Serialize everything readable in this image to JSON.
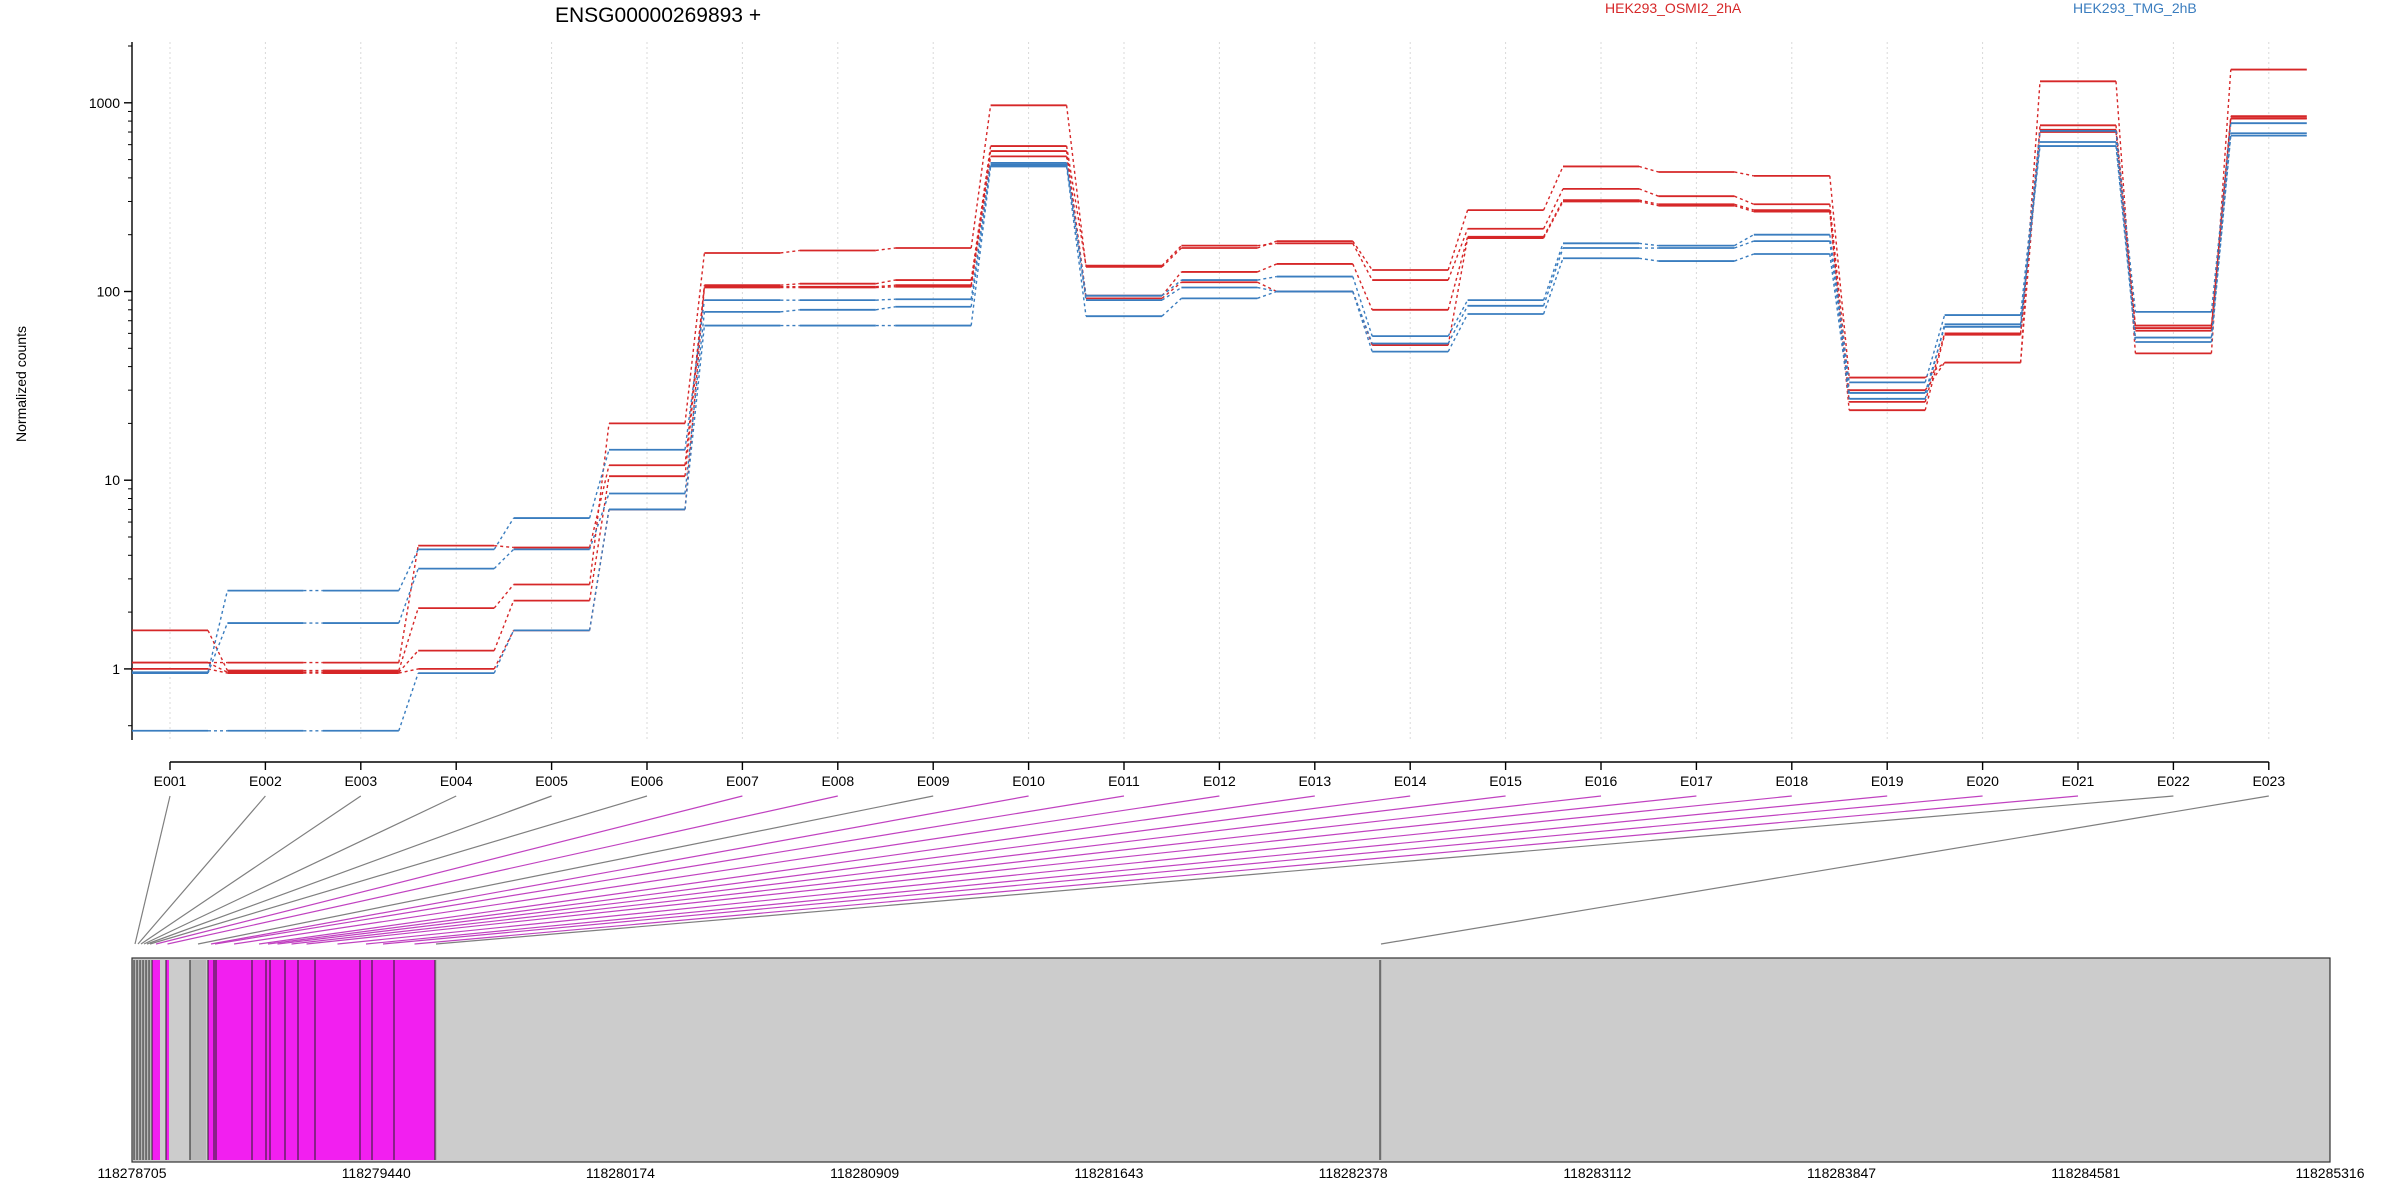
{
  "chart_data": {
    "type": "line",
    "title": "ENSG00000269893 +",
    "ylabel": "Normalized counts",
    "yscale": "log",
    "ylim": [
      0.42,
      2100
    ],
    "yticks": [
      "1",
      "10",
      "100",
      "1000"
    ],
    "grid": true,
    "legend_placement": "top-right",
    "colors": {
      "group1": "#d62728",
      "group2": "#3a7dbf",
      "gray": "#7f7f7f",
      "magenta": "#c042c0",
      "exon_fill": "#f21ff0",
      "track_bg": "#cccccc"
    },
    "categories": [
      "E001",
      "E002",
      "E003",
      "E004",
      "E005",
      "E006",
      "E007",
      "E008",
      "E009",
      "E010",
      "E011",
      "E012",
      "E013",
      "E014",
      "E015",
      "E016",
      "E017",
      "E018",
      "E019",
      "E020",
      "E021",
      "E022",
      "E023"
    ],
    "legend": [
      "HEK293_OSMI2_2hA",
      "HEK293_TMG_2hB"
    ],
    "series": [
      {
        "group": "HEK293_OSMI2_2hA",
        "values": [
          1.6,
          0.98,
          0.98,
          2.1,
          2.8,
          20,
          160,
          165,
          170,
          970,
          135,
          170,
          185,
          130,
          270,
          460,
          430,
          410,
          35,
          42,
          1300,
          47,
          1500
        ]
      },
      {
        "group": "HEK293_OSMI2_2hA",
        "values": [
          1.08,
          1.08,
          1.08,
          4.5,
          4.4,
          12,
          108,
          110,
          115,
          590,
          137,
          175,
          180,
          115,
          215,
          350,
          320,
          290,
          30,
          42,
          760,
          66,
          850
        ]
      },
      {
        "group": "HEK293_OSMI2_2hA",
        "values": [
          1.08,
          0.96,
          0.96,
          1.25,
          2.3,
          10.5,
          106,
          106,
          108,
          555,
          95,
          127,
          140,
          80,
          195,
          305,
          290,
          270,
          26,
          60,
          720,
          62,
          830
        ]
      },
      {
        "group": "HEK293_OSMI2_2hA",
        "values": [
          1.0,
          0.95,
          0.95,
          1.0,
          1.6,
          7.0,
          105,
          105,
          106,
          520,
          92,
          112,
          100,
          52,
          192,
          300,
          285,
          265,
          23.5,
          59,
          700,
          64,
          825
        ]
      },
      {
        "group": "HEK293_TMG_2hB",
        "values": [
          0.96,
          2.6,
          2.6,
          4.3,
          6.3,
          14.5,
          90,
          90,
          91,
          480,
          95,
          115,
          120,
          58,
          90,
          180,
          175,
          200,
          33,
          75,
          710,
          78,
          780
        ]
      },
      {
        "group": "HEK293_TMG_2hB",
        "values": [
          0.95,
          1.75,
          1.75,
          3.4,
          4.3,
          8.5,
          78,
          80,
          83,
          470,
          90,
          105,
          100,
          53,
          84,
          170,
          170,
          185,
          29,
          65,
          620,
          57,
          690
        ]
      },
      {
        "group": "HEK293_TMG_2hB",
        "values": [
          0.47,
          0.47,
          0.47,
          0.95,
          1.6,
          7.0,
          66,
          66,
          66,
          460,
          74,
          92,
          100,
          48,
          76,
          150,
          145,
          158,
          27,
          67,
          590,
          54,
          670
        ]
      }
    ],
    "genomic_axis": {
      "tick_labels": [
        "118278705",
        "118279440",
        "118280174",
        "118280909",
        "118281643",
        "118282378",
        "118283112",
        "118283847",
        "118284581",
        "118285316"
      ]
    }
  }
}
